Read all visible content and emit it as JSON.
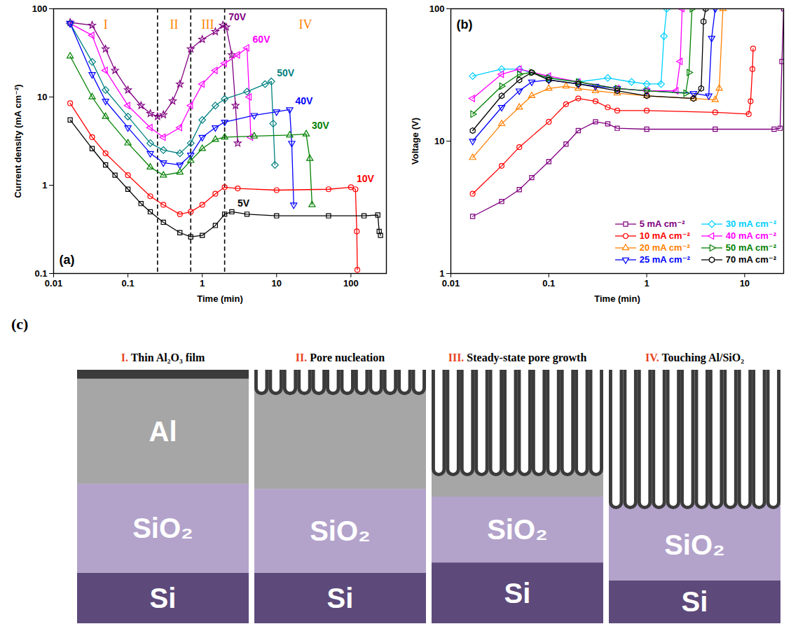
{
  "chart_data": [
    {
      "type": "line",
      "panel_label": "(a)",
      "x_label": "Time (min)",
      "y_label": "Current density (mA cm⁻²)",
      "log": true,
      "grid": false,
      "xlim": [
        0.01,
        300
      ],
      "xticks": [
        0.01,
        0.1,
        1,
        10,
        100
      ],
      "ylim": [
        0.1,
        100
      ],
      "yticks": [
        0.1,
        1,
        10,
        100
      ],
      "regions": {
        "labels": [
          "I",
          "II",
          "III",
          "IV"
        ],
        "boundaries": [
          0.25,
          0.7,
          2
        ],
        "color": "#ff8000",
        "line_style": "dashed"
      },
      "series": [
        {
          "name": "70V",
          "color": "#800080",
          "marker": "star",
          "line_style": "solid",
          "x": [
            0.0167,
            0.033,
            0.05,
            0.067,
            0.1,
            0.15,
            0.2,
            0.25,
            0.3,
            0.4,
            0.5,
            0.7,
            1,
            1.5,
            1.9,
            2.1,
            2.5,
            2.8,
            3
          ],
          "values": [
            70,
            65,
            35,
            20,
            12,
            8,
            6.5,
            6,
            6.3,
            9,
            14,
            35,
            45,
            55,
            65,
            62,
            30,
            8,
            3
          ]
        },
        {
          "name": "60V",
          "color": "#ff00ff",
          "marker": "triangle-left",
          "line_style": "solid",
          "x": [
            0.0167,
            0.033,
            0.05,
            0.1,
            0.2,
            0.3,
            0.5,
            0.7,
            1,
            1.5,
            2,
            3,
            4,
            4.3,
            4.5
          ],
          "values": [
            68,
            50,
            20,
            8,
            4.5,
            3.5,
            4.5,
            8,
            14,
            20,
            24,
            30,
            36,
            10,
            3.5
          ]
        },
        {
          "name": "50V",
          "color": "#008080",
          "marker": "diamond",
          "line_style": "solid",
          "x": [
            0.0167,
            0.033,
            0.05,
            0.1,
            0.2,
            0.3,
            0.5,
            0.7,
            1,
            1.5,
            2,
            4,
            7,
            8.5,
            9,
            9.5
          ],
          "values": [
            68,
            25,
            12,
            6,
            3,
            2.5,
            2.3,
            3,
            5.5,
            8,
            9.5,
            11.5,
            14,
            15,
            5,
            1.7
          ]
        },
        {
          "name": "40V",
          "color": "#0000ff",
          "marker": "triangle-down",
          "line_style": "solid",
          "x": [
            0.0167,
            0.033,
            0.05,
            0.1,
            0.2,
            0.3,
            0.5,
            0.7,
            1,
            1.5,
            2,
            5,
            10,
            15,
            16,
            17
          ],
          "values": [
            68,
            18,
            9,
            4.5,
            2.3,
            1.8,
            1.7,
            2.2,
            3.5,
            4.5,
            5.2,
            6.2,
            6.8,
            7.2,
            3,
            0.6
          ]
        },
        {
          "name": "30V",
          "color": "#008000",
          "marker": "triangle-up",
          "line_style": "solid",
          "x": [
            0.0167,
            0.033,
            0.05,
            0.1,
            0.2,
            0.3,
            0.5,
            0.7,
            1,
            1.5,
            2,
            5,
            15,
            25,
            28,
            30
          ],
          "values": [
            29,
            10,
            6,
            3,
            1.6,
            1.3,
            1.4,
            1.9,
            2.6,
            3.3,
            3.5,
            3.6,
            3.7,
            3.8,
            2,
            0.6
          ]
        },
        {
          "name": "10V",
          "color": "#ff0000",
          "marker": "circle",
          "line_style": "solid",
          "x": [
            0.0167,
            0.033,
            0.05,
            0.1,
            0.2,
            0.3,
            0.5,
            0.7,
            1,
            1.5,
            2,
            3,
            10,
            50,
            100,
            115,
            120,
            122
          ],
          "values": [
            8.5,
            3.5,
            2.3,
            1.3,
            0.75,
            0.6,
            0.47,
            0.5,
            0.6,
            0.8,
            0.95,
            0.92,
            0.88,
            0.9,
            0.95,
            0.9,
            0.3,
            0.11
          ]
        },
        {
          "name": "5V",
          "color": "#000000",
          "marker": "square",
          "line_style": "solid",
          "x": [
            0.0167,
            0.033,
            0.05,
            0.067,
            0.1,
            0.15,
            0.2,
            0.3,
            0.5,
            0.7,
            1,
            1.5,
            2,
            2.5,
            4,
            10,
            50,
            150,
            230,
            240,
            250
          ],
          "values": [
            5.5,
            2.6,
            1.7,
            1.3,
            0.9,
            0.62,
            0.5,
            0.38,
            0.29,
            0.26,
            0.27,
            0.35,
            0.47,
            0.5,
            0.47,
            0.45,
            0.45,
            0.45,
            0.46,
            0.3,
            0.27
          ]
        }
      ]
    },
    {
      "type": "line",
      "panel_label": "(b)",
      "x_label": "Time (min)",
      "y_label": "Voltage (V)",
      "log": true,
      "grid": false,
      "legend": "bottom-right",
      "xlim": [
        0.01,
        25
      ],
      "xticks": [
        0.01,
        0.1,
        1,
        10
      ],
      "ylim": [
        1,
        100
      ],
      "yticks": [
        1,
        10,
        100
      ],
      "series": [
        {
          "name": "5 mA cm⁻²",
          "color": "#800080",
          "marker": "square",
          "line_style": "solid",
          "x": [
            0.0167,
            0.033,
            0.05,
            0.067,
            0.1,
            0.15,
            0.2,
            0.3,
            0.4,
            0.5,
            1,
            5,
            20,
            23,
            24,
            25
          ],
          "values": [
            2.7,
            3.5,
            4.3,
            5.3,
            7,
            9.5,
            12,
            14,
            13.5,
            12.5,
            12.3,
            12.3,
            12.3,
            12.5,
            40,
            100
          ]
        },
        {
          "name": "10 mA cm⁻²",
          "color": "#ff0000",
          "marker": "circle",
          "line_style": "solid",
          "x": [
            0.0167,
            0.033,
            0.05,
            0.1,
            0.15,
            0.2,
            0.3,
            0.4,
            0.5,
            1,
            5,
            11,
            11.5,
            12,
            12.2
          ],
          "values": [
            4,
            6.5,
            9,
            14,
            19,
            21,
            20,
            18,
            17,
            17,
            16.5,
            16,
            20,
            35,
            50
          ]
        },
        {
          "name": "20 mA cm⁻²",
          "color": "#ff8000",
          "marker": "triangle-up",
          "line_style": "solid",
          "x": [
            0.0167,
            0.033,
            0.05,
            0.067,
            0.1,
            0.15,
            0.2,
            0.3,
            0.5,
            1,
            3,
            5,
            5.5,
            6
          ],
          "values": [
            7.5,
            13.5,
            18,
            22,
            25,
            26,
            25,
            24,
            23,
            22,
            21,
            20.5,
            25,
            100
          ]
        },
        {
          "name": "25 mA cm⁻²",
          "color": "#0000ff",
          "marker": "triangle-down",
          "line_style": "solid",
          "x": [
            0.0167,
            0.033,
            0.05,
            0.067,
            0.1,
            0.2,
            0.3,
            0.5,
            1,
            3,
            4.3,
            4.6,
            5
          ],
          "values": [
            10,
            18,
            24,
            28,
            29,
            27,
            26,
            25,
            24,
            23,
            22,
            60,
            100
          ]
        },
        {
          "name": "30 mA cm⁻²",
          "color": "#00d0ff",
          "marker": "diamond",
          "line_style": "solid",
          "x": [
            0.0167,
            0.033,
            0.05,
            0.1,
            0.2,
            0.4,
            0.7,
            1,
            1.4,
            1.5,
            1.6
          ],
          "values": [
            31,
            35,
            35,
            30,
            28,
            30,
            28,
            27,
            27,
            62,
            100
          ]
        },
        {
          "name": "40 mA cm⁻²",
          "color": "#ff00ff",
          "marker": "triangle-left",
          "line_style": "solid",
          "x": [
            0.0167,
            0.033,
            0.05,
            0.1,
            0.2,
            0.5,
            1,
            2,
            2.2,
            2.3
          ],
          "values": [
            21,
            32,
            35,
            31,
            28,
            25,
            24,
            24,
            40,
            100
          ]
        },
        {
          "name": "50 mA cm⁻²",
          "color": "#008000",
          "marker": "triangle-right",
          "line_style": "solid",
          "x": [
            0.0167,
            0.033,
            0.05,
            0.067,
            0.1,
            0.2,
            0.5,
            1,
            2.5,
            2.7,
            2.9
          ],
          "values": [
            16,
            26,
            32,
            33,
            30,
            28,
            25,
            24,
            23,
            33,
            100
          ]
        },
        {
          "name": "70 mA cm⁻²",
          "color": "#000000",
          "marker": "hexagon",
          "line_style": "solid",
          "x": [
            0.0167,
            0.033,
            0.05,
            0.067,
            0.1,
            0.2,
            0.5,
            1,
            3,
            3.6,
            3.8,
            4
          ],
          "values": [
            12,
            22,
            29,
            33,
            29,
            27,
            24,
            22,
            21,
            25,
            80,
            100
          ]
        }
      ]
    }
  ],
  "diagram": {
    "label": "(c)",
    "numeral_color": "#e8431e",
    "panels": [
      {
        "numeral": "I.",
        "title": "Thin Al₂O₃ film",
        "labels": {
          "al": "Al",
          "sio2": "SiO₂",
          "si": "Si"
        }
      },
      {
        "numeral": "II.",
        "title": "Pore nucleation",
        "labels": {
          "sio2": "SiO₂",
          "si": "Si"
        }
      },
      {
        "numeral": "III.",
        "title": "Steady-state pore growth",
        "labels": {
          "sio2": "SiO₂",
          "si": "Si"
        }
      },
      {
        "numeral": "IV.",
        "title": "Touching Al/SiO₂",
        "labels": {
          "sio2": "SiO₂",
          "si": "Si"
        }
      }
    ]
  }
}
